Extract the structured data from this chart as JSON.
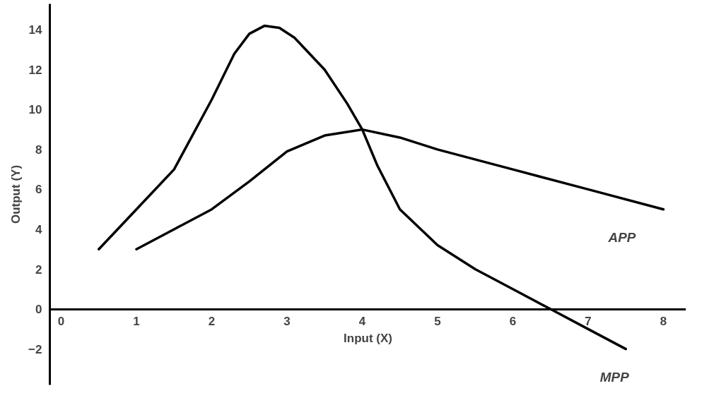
{
  "chart_data": {
    "type": "line",
    "xlabel": "Input (X)",
    "ylabel": "Output (Y)",
    "xlim": [
      -0.15,
      8.3
    ],
    "ylim": [
      -3.8,
      15.3
    ],
    "xticks": [
      0,
      1,
      2,
      3,
      4,
      5,
      6,
      7,
      8
    ],
    "yticks": [
      -2,
      0,
      2,
      4,
      6,
      8,
      10,
      12,
      14
    ],
    "grid": false,
    "marker": "none",
    "line_style": "solid",
    "series": [
      {
        "color": "#000000",
        "x": [
          0.5,
          1,
          1.5,
          2,
          2.3,
          2.5,
          2.7,
          2.9,
          3.1,
          3.5,
          3.8,
          4,
          4.2,
          4.5,
          5,
          5.5,
          6,
          6.5,
          7,
          7.5
        ],
        "values": [
          3,
          5,
          7,
          10.5,
          12.8,
          13.8,
          14.2,
          14.1,
          13.6,
          12,
          10.3,
          9,
          7.2,
          5,
          3.2,
          2,
          1,
          0,
          -1,
          -2
        ]
      },
      {
        "color": "#000000",
        "x": [
          1,
          1.5,
          2,
          2.5,
          3,
          3.5,
          4,
          4.5,
          5,
          6,
          7,
          8
        ],
        "values": [
          3,
          4,
          5,
          6.4,
          7.9,
          8.7,
          9,
          8.6,
          8,
          7,
          6,
          5
        ]
      }
    ],
    "annotations": [
      "APP",
      "MPP"
    ]
  }
}
